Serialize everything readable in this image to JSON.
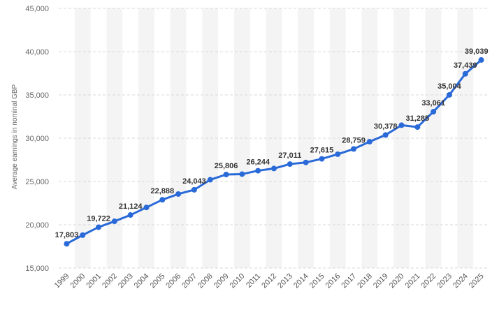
{
  "chart_data": {
    "type": "line",
    "title": "",
    "xlabel": "",
    "ylabel": "Average earnings in nominal GBP",
    "ylim": [
      15000,
      45000
    ],
    "yticks": [
      "15,000",
      "20,000",
      "25,000",
      "30,000",
      "35,000",
      "40,000",
      "45,000"
    ],
    "ytick_values": [
      15000,
      20000,
      25000,
      30000,
      35000,
      40000,
      45000
    ],
    "grid": "horizontal dashed",
    "categories": [
      "1999",
      "2000",
      "2001",
      "2002",
      "2003",
      "2004",
      "2005",
      "2006",
      "2007",
      "2008",
      "2009",
      "2010",
      "2011",
      "2012",
      "2013",
      "2014",
      "2015",
      "2016",
      "2017",
      "2018",
      "2019",
      "2020",
      "2021",
      "2022",
      "2023",
      "2024",
      "2025"
    ],
    "series": [
      {
        "values": [
          17803,
          18800,
          19722,
          20400,
          21124,
          22000,
          22888,
          23550,
          24043,
          25200,
          25806,
          25850,
          26244,
          26500,
          27011,
          27200,
          27615,
          28150,
          28759,
          29600,
          30378,
          31500,
          31285,
          33061,
          35004,
          37439,
          39039
        ],
        "color": "#2a6ad8"
      }
    ],
    "data_labels": [
      {
        "index": 0,
        "text": "17,803"
      },
      {
        "index": 2,
        "text": "19,722"
      },
      {
        "index": 4,
        "text": "21,124"
      },
      {
        "index": 6,
        "text": "22,888"
      },
      {
        "index": 8,
        "text": "24,043"
      },
      {
        "index": 10,
        "text": "25,806"
      },
      {
        "index": 12,
        "text": "26,244"
      },
      {
        "index": 14,
        "text": "27,011"
      },
      {
        "index": 16,
        "text": "27,615"
      },
      {
        "index": 18,
        "text": "28,759"
      },
      {
        "index": 20,
        "text": "30,378"
      },
      {
        "index": 22,
        "text": "31,285"
      },
      {
        "index": 23,
        "text": "33,061"
      },
      {
        "index": 24,
        "text": "35,004"
      },
      {
        "index": 25,
        "text": "37,439"
      },
      {
        "index": 26,
        "text": "39,039"
      }
    ],
    "colors": {
      "line": "#2a6ad8",
      "band": "#f4f4f4",
      "grid": "#d8d8d8"
    }
  }
}
